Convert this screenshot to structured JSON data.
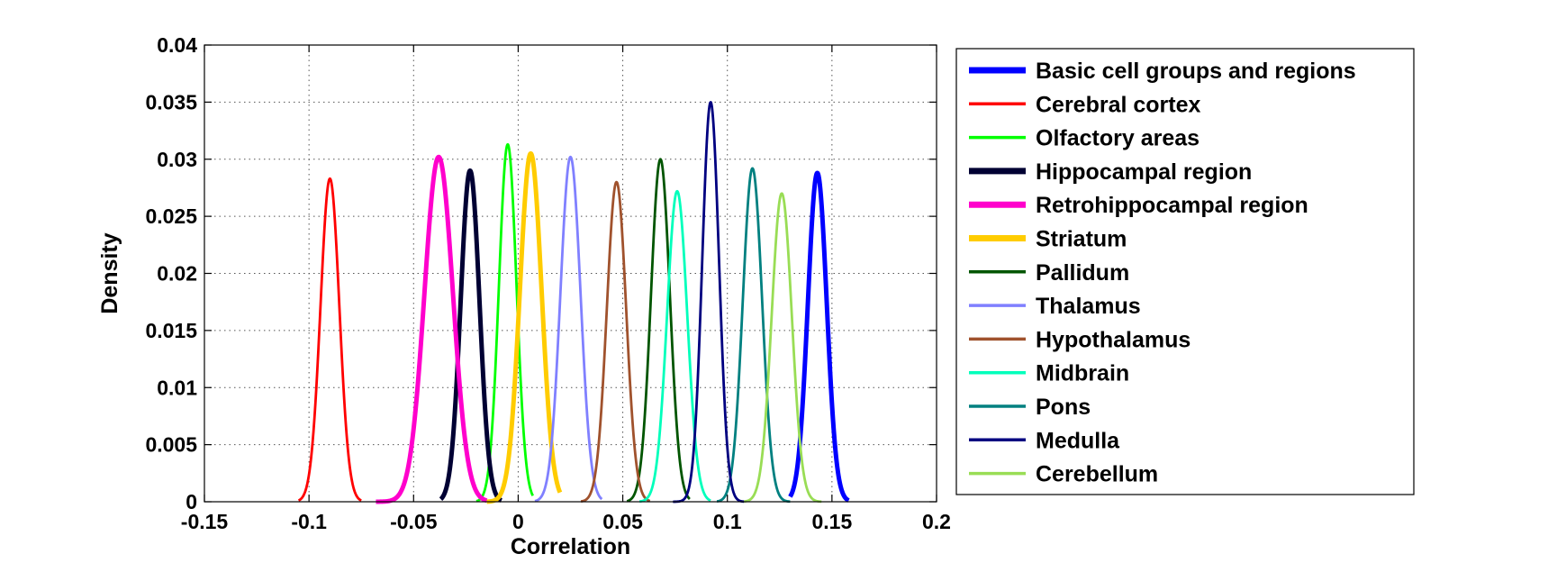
{
  "chart_data": {
    "type": "line",
    "title": "",
    "xlabel": "Correlation",
    "ylabel": "Density",
    "xlim": [
      -0.15,
      0.2
    ],
    "ylim": [
      0,
      0.04
    ],
    "xticks": [
      -0.15,
      -0.1,
      -0.05,
      0,
      0.05,
      0.1,
      0.15,
      0.2
    ],
    "xtick_labels": [
      "-0.15",
      "-0.1",
      "-0.05",
      "0",
      "0.05",
      "0.1",
      "0.15",
      "0.2"
    ],
    "yticks": [
      0,
      0.005,
      0.01,
      0.015,
      0.02,
      0.025,
      0.03,
      0.035,
      0.04
    ],
    "ytick_labels": [
      "0",
      "0.005",
      "0.01",
      "0.015",
      "0.02",
      "0.025",
      "0.03",
      "0.035",
      "0.04"
    ],
    "grid": true,
    "legend_position": "outside-right",
    "series": [
      {
        "name": "Basic cell groups and regions",
        "color": "#0000ff",
        "thick": true,
        "mean": 0.143,
        "sd": 0.0045,
        "peak": 0.0288,
        "x_min": 0.13,
        "x_max": 0.158
      },
      {
        "name": "Cerebral cortex",
        "color": "#ff0000",
        "thick": false,
        "mean": -0.09,
        "sd": 0.0045,
        "peak": 0.0283,
        "x_min": -0.105,
        "x_max": -0.075
      },
      {
        "name": "Olfactory areas",
        "color": "#00ff00",
        "thick": false,
        "mean": -0.005,
        "sd": 0.0042,
        "peak": 0.0313,
        "x_min": -0.02,
        "x_max": 0.007
      },
      {
        "name": "Hippocampal region",
        "color": "#000033",
        "thick": true,
        "mean": -0.023,
        "sd": 0.0045,
        "peak": 0.029,
        "x_min": -0.037,
        "x_max": -0.008
      },
      {
        "name": "Retrohippocampal region",
        "color": "#ff00cc",
        "thick": true,
        "mean": -0.038,
        "sd": 0.0068,
        "peak": 0.0302,
        "x_min": -0.068,
        "x_max": -0.015
      },
      {
        "name": "Striatum",
        "color": "#ffcc00",
        "thick": true,
        "mean": 0.006,
        "sd": 0.0052,
        "peak": 0.0305,
        "x_min": -0.015,
        "x_max": 0.02
      },
      {
        "name": "Pallidum",
        "color": "#005500",
        "thick": false,
        "mean": 0.068,
        "sd": 0.0045,
        "peak": 0.03,
        "x_min": 0.052,
        "x_max": 0.082
      },
      {
        "name": "Thalamus",
        "color": "#8080ff",
        "thick": false,
        "mean": 0.025,
        "sd": 0.0048,
        "peak": 0.0302,
        "x_min": 0.008,
        "x_max": 0.04
      },
      {
        "name": "Hypothalamus",
        "color": "#a0522d",
        "thick": false,
        "mean": 0.047,
        "sd": 0.0046,
        "peak": 0.028,
        "x_min": 0.03,
        "x_max": 0.063
      },
      {
        "name": "Midbrain",
        "color": "#00ffbb",
        "thick": false,
        "mean": 0.076,
        "sd": 0.0048,
        "peak": 0.0272,
        "x_min": 0.058,
        "x_max": 0.092
      },
      {
        "name": "Pons",
        "color": "#008080",
        "thick": false,
        "mean": 0.112,
        "sd": 0.0046,
        "peak": 0.0292,
        "x_min": 0.095,
        "x_max": 0.13
      },
      {
        "name": "Medulla",
        "color": "#000080",
        "thick": false,
        "mean": 0.092,
        "sd": 0.004,
        "peak": 0.035,
        "x_min": 0.074,
        "x_max": 0.108
      },
      {
        "name": "Cerebellum",
        "color": "#99dd55",
        "thick": false,
        "mean": 0.126,
        "sd": 0.0048,
        "peak": 0.027,
        "x_min": 0.108,
        "x_max": 0.145
      }
    ]
  }
}
